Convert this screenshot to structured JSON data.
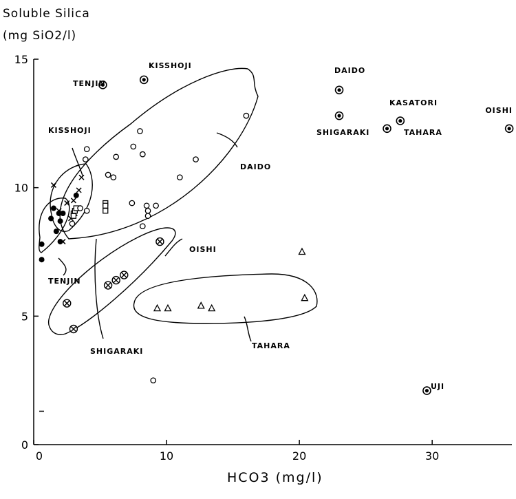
{
  "chart_data": {
    "type": "scatter",
    "ylabel_line1": "Soluble Silica",
    "ylabel_line2": "(mg SiO2/l)",
    "xlabel": "HCO3 (mg/l)",
    "xlim": [
      0,
      36
    ],
    "ylim": [
      0,
      15
    ],
    "xticks": [
      "0",
      "10",
      "20",
      "30"
    ],
    "yticks": [
      "0",
      "5",
      "10",
      "15"
    ],
    "series": [
      {
        "marker": "filled-circle",
        "points": [
          [
            0.6,
            7.8
          ],
          [
            0.6,
            7.2
          ],
          [
            1.3,
            8.8
          ],
          [
            1.5,
            9.2
          ],
          [
            1.7,
            8.3
          ],
          [
            1.9,
            9.0
          ],
          [
            2.2,
            9.0
          ],
          [
            2.0,
            8.7
          ],
          [
            3.2,
            9.7
          ],
          [
            2.0,
            7.9
          ]
        ]
      },
      {
        "marker": "cross",
        "points": [
          [
            1.5,
            10.1
          ],
          [
            2.5,
            9.4
          ],
          [
            3.0,
            9.5
          ],
          [
            3.6,
            10.4
          ],
          [
            3.4,
            9.9
          ],
          [
            2.8,
            8.8
          ],
          [
            2.2,
            7.9
          ],
          [
            1.9,
            9.1
          ],
          [
            3.1,
            9.0
          ]
        ]
      },
      {
        "marker": "square",
        "points": [
          [
            3.0,
            9.0
          ],
          [
            3.1,
            9.1
          ],
          [
            3.0,
            8.9
          ],
          [
            5.4,
            9.4
          ],
          [
            5.4,
            9.3
          ],
          [
            5.4,
            9.1
          ],
          [
            3.2,
            9.2
          ]
        ]
      },
      {
        "marker": "open-circle",
        "points": [
          [
            16.0,
            12.8
          ],
          [
            8.0,
            12.2
          ],
          [
            7.5,
            11.6
          ],
          [
            8.2,
            11.3
          ],
          [
            12.2,
            11.1
          ],
          [
            11.0,
            10.4
          ],
          [
            6.2,
            11.2
          ],
          [
            4.0,
            11.5
          ],
          [
            3.9,
            11.1
          ],
          [
            5.6,
            10.5
          ],
          [
            6.0,
            10.4
          ],
          [
            7.4,
            9.4
          ],
          [
            8.5,
            9.3
          ],
          [
            9.2,
            9.3
          ],
          [
            8.6,
            9.1
          ],
          [
            8.6,
            8.9
          ],
          [
            8.2,
            8.5
          ],
          [
            4.0,
            9.1
          ],
          [
            3.5,
            9.2
          ],
          [
            2.9,
            8.6
          ],
          [
            9.0,
            2.5
          ]
        ]
      },
      {
        "marker": "circled-cross",
        "points": [
          [
            9.5,
            7.9
          ],
          [
            2.5,
            5.5
          ],
          [
            5.6,
            6.2
          ],
          [
            6.2,
            6.4
          ],
          [
            6.8,
            6.6
          ],
          [
            3.0,
            4.5
          ]
        ]
      },
      {
        "marker": "triangle",
        "points": [
          [
            20.2,
            7.5
          ],
          [
            9.3,
            5.3
          ],
          [
            10.1,
            5.3
          ],
          [
            12.6,
            5.4
          ],
          [
            13.4,
            5.3
          ],
          [
            20.4,
            5.7
          ]
        ]
      },
      {
        "marker": "dotted-circle",
        "points": [
          [
            5.2,
            14.0
          ],
          [
            8.3,
            14.2
          ],
          [
            23.0,
            13.8
          ],
          [
            23.0,
            12.8
          ],
          [
            26.6,
            12.3
          ],
          [
            27.6,
            12.6
          ],
          [
            35.8,
            12.3
          ],
          [
            29.6,
            2.1
          ]
        ]
      }
    ],
    "annotations": [
      "TENJIN",
      "KISSHOJI",
      "DAIDO",
      "KASATORI",
      "OISHI",
      "SHIGARAKI",
      "TAHARA",
      "UJI",
      "KISSHOJI",
      "DAIDO",
      "OISHI",
      "TENJIN",
      "SHIGARAKI",
      "TAHARA"
    ]
  }
}
